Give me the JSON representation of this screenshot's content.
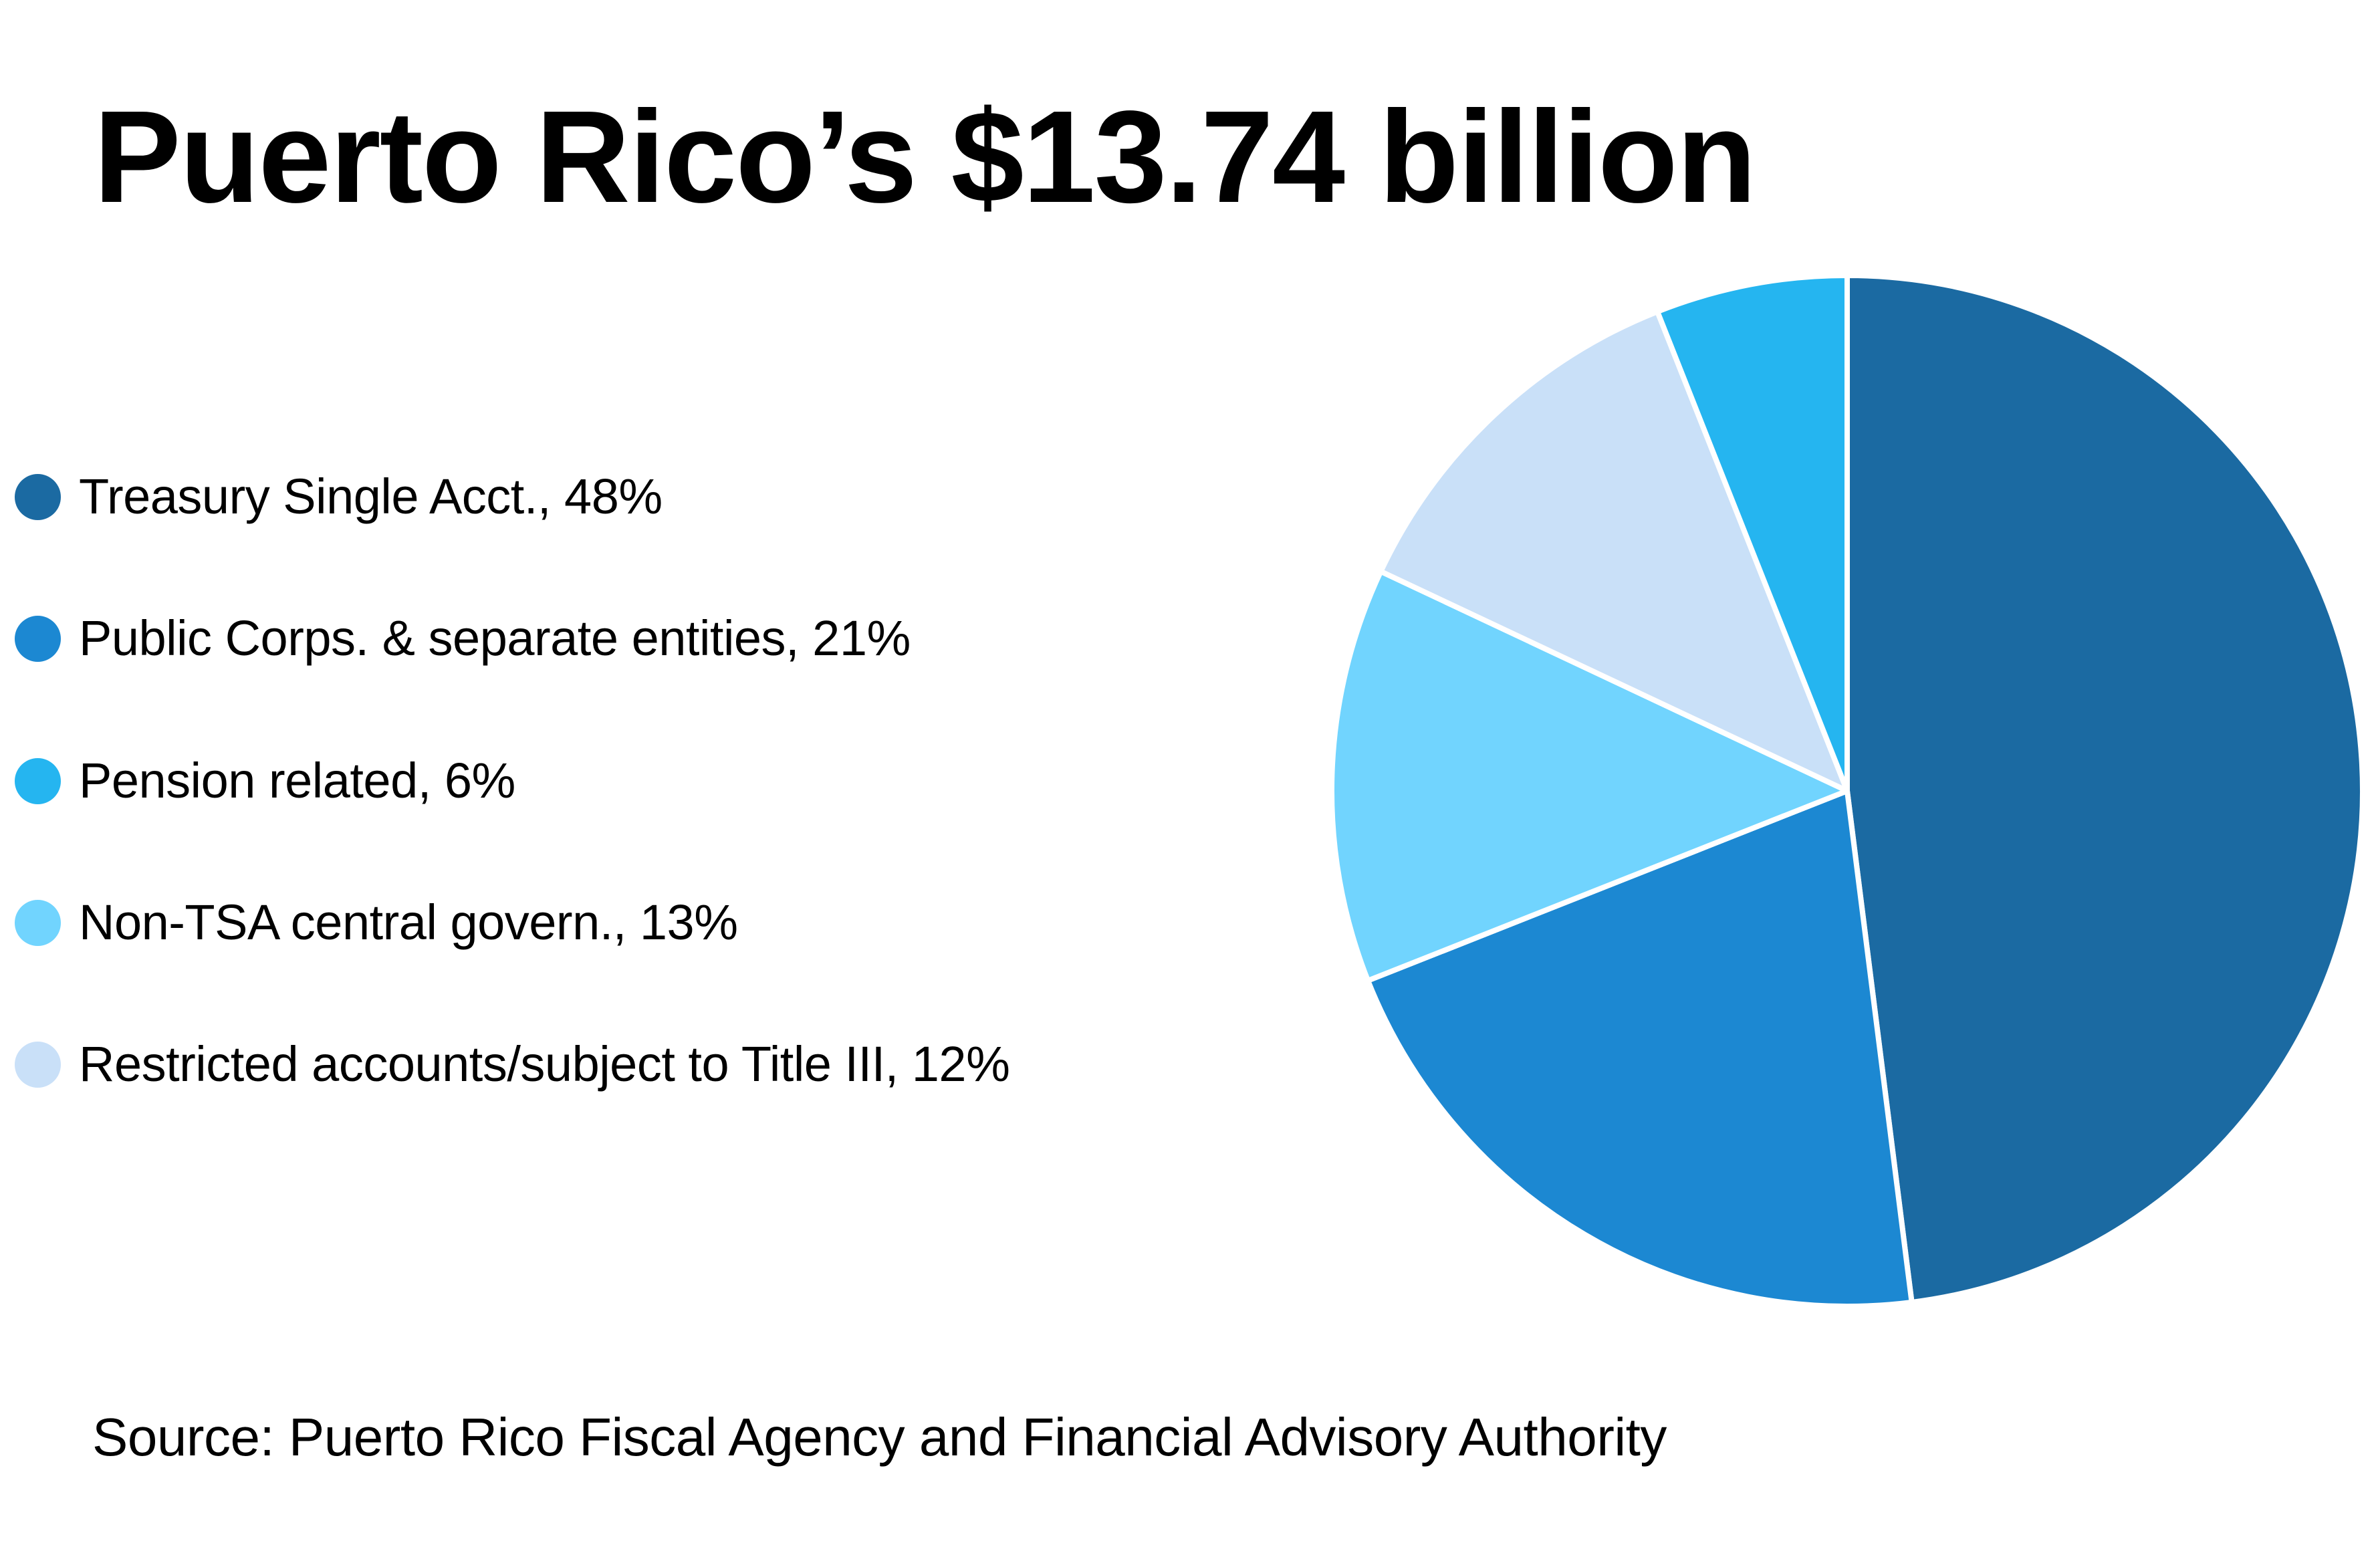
{
  "title": "Puerto Rico’s $13.74 billion",
  "source": "Source: Puerto Rico Fiscal Agency and Financial Advisory Authority",
  "legend": [
    {
      "label": "Treasury Single Acct., 48%",
      "color": "#1b6aa2"
    },
    {
      "label": "Public Corps. & separate entities, 21%",
      "color": "#1c88d2"
    },
    {
      "label": "Pension related, 6%",
      "color": "#25b5f0"
    },
    {
      "label": "Non-TSA central govern., 13%",
      "color": "#71d4fe"
    },
    {
      "label": "Restricted accounts/subject to Title III, 12%",
      "color": "#c9e0f8"
    }
  ],
  "chart_data": {
    "type": "pie",
    "title": "Puerto Rico’s $13.74 billion",
    "total_label": "$13.74 billion",
    "slice_order": "clockwise from 12 o'clock",
    "slices": [
      {
        "name": "Treasury Single Acct.",
        "value": 48,
        "color": "#1b6aa2"
      },
      {
        "name": "Public Corps. & separate entities",
        "value": 21,
        "color": "#1c88d2"
      },
      {
        "name": "Non-TSA central govern.",
        "value": 13,
        "color": "#71d4fe"
      },
      {
        "name": "Restricted accounts/subject to Title III",
        "value": 12,
        "color": "#c9e0f8"
      },
      {
        "name": "Pension related",
        "value": 6,
        "color": "#25b5f0"
      }
    ],
    "unit": "%",
    "legend_position": "left",
    "source": "Source: Puerto Rico Fiscal Agency and Financial Advisory Authority"
  }
}
